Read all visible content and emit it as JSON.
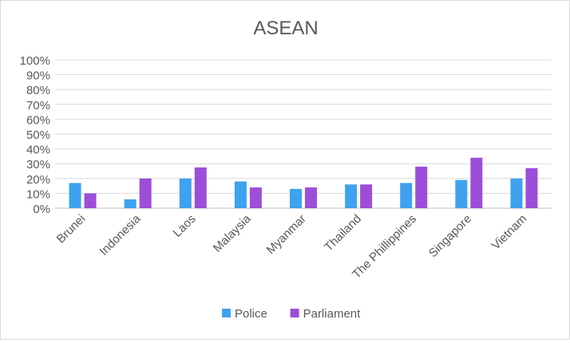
{
  "chart_data": {
    "type": "bar",
    "title": "ASEAN",
    "xlabel": "",
    "ylabel": "",
    "categories": [
      "Brunei",
      "Indonesia",
      "Laos",
      "Malaysia",
      "Myanmar",
      "Thailand",
      "The Phillippines",
      "Singapore",
      "Vietnam"
    ],
    "series": [
      {
        "name": "Police",
        "color": "#3ea2ee",
        "values": [
          17,
          6,
          20,
          18,
          13,
          16,
          17,
          19,
          20
        ]
      },
      {
        "name": "Parliament",
        "color": "#9d4ed9",
        "values": [
          10,
          20,
          27.5,
          14,
          14,
          16,
          28,
          34,
          27
        ]
      }
    ],
    "ylim": [
      0,
      100
    ],
    "yticks": [
      "0%",
      "10%",
      "20%",
      "30%",
      "40%",
      "50%",
      "60%",
      "70%",
      "80%",
      "90%",
      "100%"
    ],
    "grid": true,
    "legend_position": "bottom"
  }
}
